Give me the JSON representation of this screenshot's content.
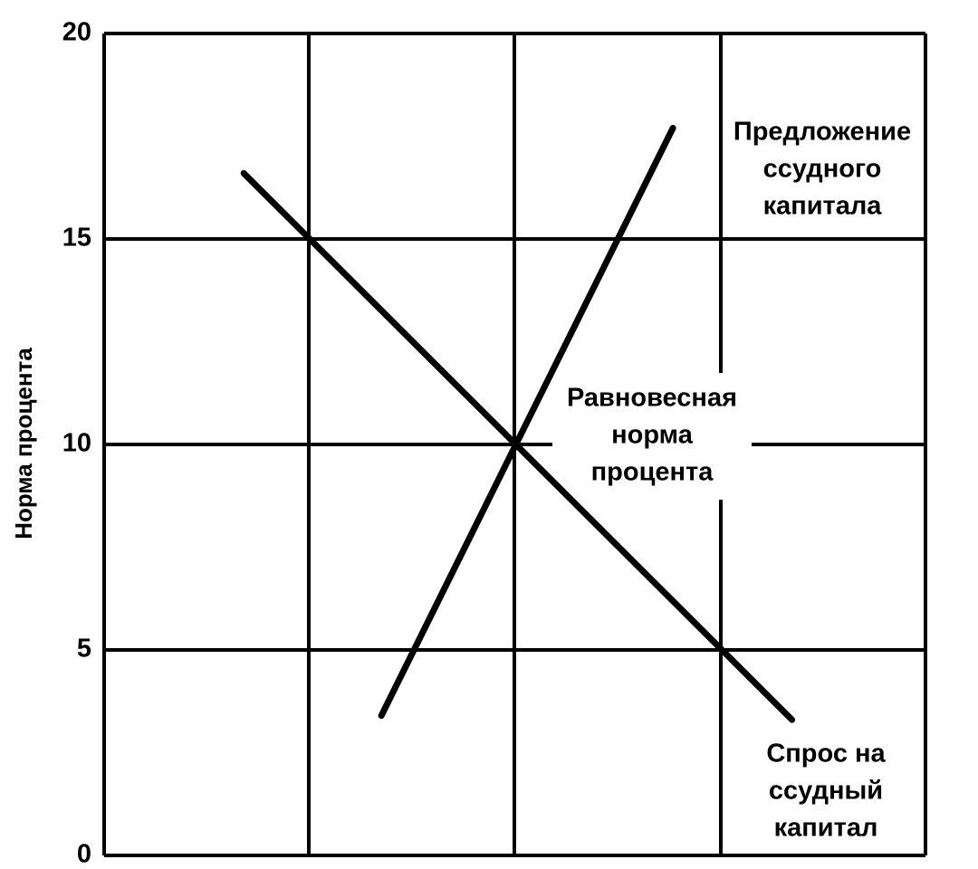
{
  "chart_data": {
    "type": "line",
    "ylabel": "Норма процента",
    "ylim": [
      0,
      20
    ],
    "yticks": [
      0,
      5,
      10,
      15,
      20
    ],
    "grid": true,
    "xlim": [
      0,
      4
    ],
    "series": [
      {
        "name": [
          "Предложение",
          "ссудного",
          "капитала"
        ],
        "color": "#000000",
        "x": [
          1.35,
          2.77
        ],
        "values": [
          3.4,
          17.7
        ]
      },
      {
        "name": [
          "Спрос на",
          "ссудный",
          "капитал"
        ],
        "color": "#000000",
        "x": [
          0.68,
          3.35
        ],
        "values": [
          16.6,
          3.3
        ]
      }
    ],
    "annotations": [
      {
        "lines": [
          "Равновесная",
          "норма",
          "процента"
        ],
        "x": 2,
        "y": 10
      }
    ]
  }
}
